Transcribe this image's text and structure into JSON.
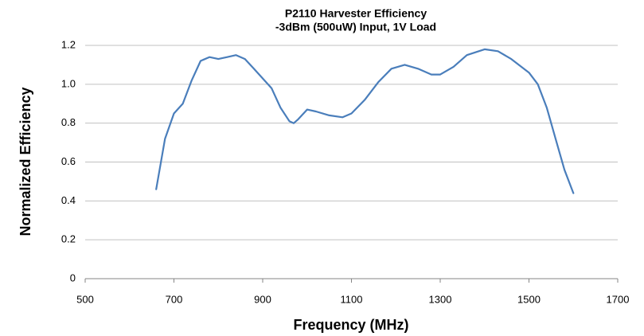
{
  "chart_data": {
    "type": "line",
    "title": "P2110 Harvester Efficiency",
    "subtitle": "-3dBm (500uW) Input, 1V Load",
    "x_label": "Frequency (MHz)",
    "y_label": "Normalized Efficiency",
    "x": [
      660,
      680,
      700,
      720,
      740,
      760,
      780,
      800,
      820,
      840,
      860,
      880,
      900,
      920,
      940,
      960,
      970,
      980,
      1000,
      1020,
      1050,
      1080,
      1100,
      1130,
      1160,
      1190,
      1220,
      1250,
      1280,
      1300,
      1330,
      1360,
      1400,
      1430,
      1460,
      1500,
      1520,
      1540,
      1560,
      1580,
      1600
    ],
    "series": [
      {
        "name": "Efficiency",
        "color": "#4a7ebb",
        "values": [
          0.46,
          0.72,
          0.85,
          0.9,
          1.02,
          1.12,
          1.14,
          1.13,
          1.14,
          1.15,
          1.13,
          1.08,
          1.03,
          0.98,
          0.88,
          0.81,
          0.8,
          0.82,
          0.87,
          0.86,
          0.84,
          0.83,
          0.85,
          0.92,
          1.01,
          1.08,
          1.1,
          1.08,
          1.05,
          1.05,
          1.09,
          1.15,
          1.18,
          1.17,
          1.13,
          1.06,
          1.0,
          0.88,
          0.72,
          0.56,
          0.44
        ]
      }
    ],
    "xlim": [
      500,
      1700
    ],
    "xticks": [
      500,
      700,
      900,
      1100,
      1300,
      1500,
      1700
    ],
    "ylim": [
      0,
      1.2
    ],
    "yticks": [
      0,
      0.2,
      0.4,
      0.6,
      0.8,
      {
        "value": 1,
        "label": "1.0"
      },
      1.2
    ],
    "grid": true
  }
}
